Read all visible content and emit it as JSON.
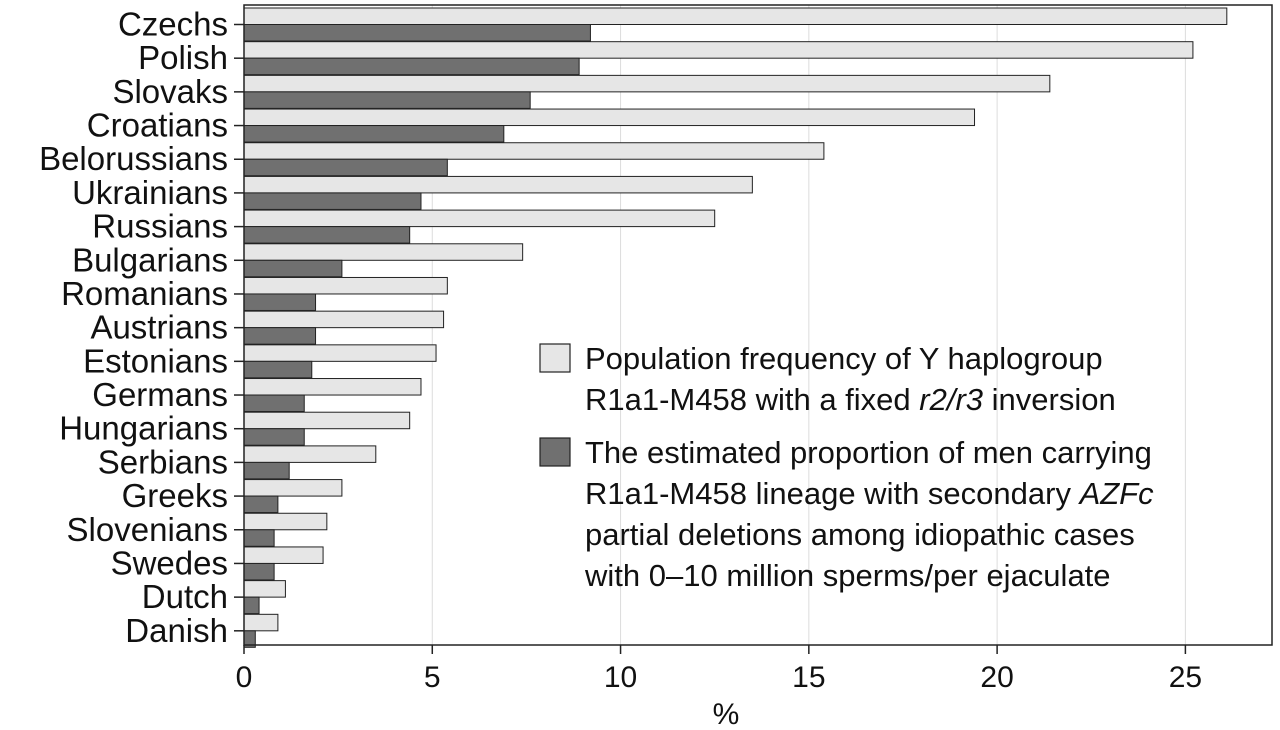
{
  "chart_data": {
    "type": "bar",
    "orientation": "horizontal",
    "categories": [
      "Czechs",
      "Polish",
      "Slovaks",
      "Croatians",
      "Belorussians",
      "Ukrainians",
      "Russians",
      "Bulgarians",
      "Romanians",
      "Austrians",
      "Estonians",
      "Germans",
      "Hungarians",
      "Serbians",
      "Greeks",
      "Slovenians",
      "Swedes",
      "Dutch",
      "Danish"
    ],
    "series": [
      {
        "name": "Population frequency of Y haplogroup R1a1-M458 with a fixed r2/r3 inversion",
        "color": "#e6e6e6",
        "values": [
          26.1,
          25.2,
          21.4,
          19.4,
          15.4,
          13.5,
          12.5,
          7.4,
          5.4,
          5.3,
          5.1,
          4.7,
          4.4,
          3.5,
          2.6,
          2.2,
          2.1,
          1.1,
          0.9
        ]
      },
      {
        "name": "The estimated proportion of men carrying R1a1-M458 lineage with secondary AZFc partial deletions among idiopathic cases with 0–10 million sperms/per ejaculate",
        "color": "#707070",
        "values": [
          9.2,
          8.9,
          7.6,
          6.9,
          5.4,
          4.7,
          4.4,
          2.6,
          1.9,
          1.9,
          1.8,
          1.6,
          1.6,
          1.2,
          0.9,
          0.8,
          0.8,
          0.4,
          0.3
        ]
      }
    ],
    "xlabel": "%",
    "ylabel": "",
    "xlim": [
      0,
      27.3
    ],
    "xticks": [
      "0",
      "5",
      "10",
      "15",
      "20",
      "25"
    ],
    "xtick_values": [
      0,
      5,
      10,
      15,
      20,
      25
    ],
    "grid": "vertical",
    "legend_position": "center-right",
    "legend": [
      {
        "lines": [
          [
            {
              "t": "Population frequency of Y haplogroup",
              "i": false
            }
          ],
          [
            {
              "t": "R1a1-M458 with a fixed ",
              "i": false
            },
            {
              "t": "r2/r3",
              "i": true
            },
            {
              "t": " inversion",
              "i": false
            }
          ]
        ]
      },
      {
        "lines": [
          [
            {
              "t": "The estimated proportion of men carrying",
              "i": false
            }
          ],
          [
            {
              "t": "R1a1-M458 lineage with secondary ",
              "i": false
            },
            {
              "t": "AZFc",
              "i": true
            }
          ],
          [
            {
              "t": "partial deletions among idiopathic cases",
              "i": false
            }
          ],
          [
            {
              "t": "with 0–10 million sperms/per ejaculate",
              "i": false
            }
          ]
        ]
      }
    ]
  }
}
